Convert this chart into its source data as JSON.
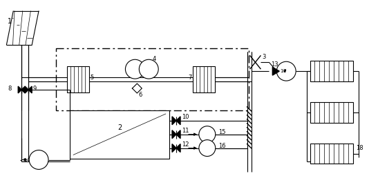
{
  "bg_color": "#ffffff",
  "line_color": "#000000",
  "figsize": [
    5.34,
    2.71
  ],
  "dpi": 100
}
